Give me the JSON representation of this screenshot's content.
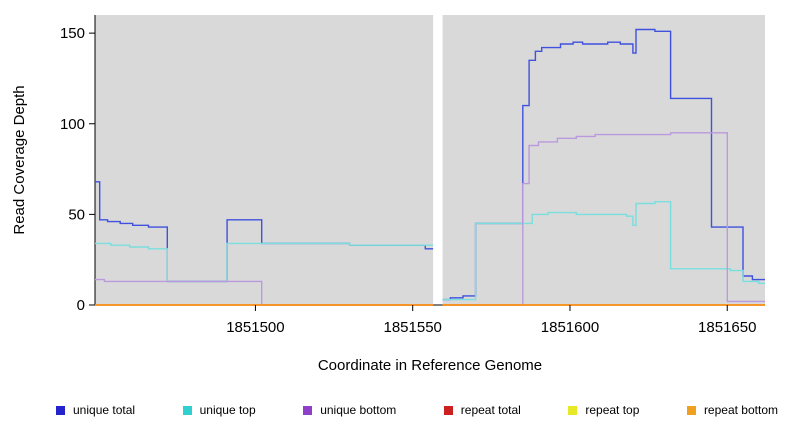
{
  "chart_data": {
    "type": "line",
    "title": "",
    "xlabel": "Coordinate in Reference Genome",
    "ylabel": "Read Coverage Depth",
    "xlim": [
      1851449,
      1851662
    ],
    "ylim": [
      0,
      160
    ],
    "xticks": [
      1851500,
      1851550,
      1851600,
      1851650
    ],
    "yticks": [
      0,
      50,
      100,
      150
    ],
    "gap_region": [
      1851556.5,
      1851559.5
    ],
    "plot_bg": "#d9d9d9",
    "axis_color": "#000000",
    "legend_position": "bottom",
    "grid": false,
    "series": [
      {
        "name": "unique total",
        "color": "#3f51dd",
        "legend_color": "#2424cc",
        "segments": [
          [
            [
              1851449,
              68
            ],
            [
              1851450.5,
              68
            ],
            [
              1851450.5,
              47
            ],
            [
              1851453,
              47
            ],
            [
              1851453,
              46
            ],
            [
              1851457,
              46
            ],
            [
              1851457,
              45
            ],
            [
              1851461,
              45
            ],
            [
              1851461,
              44
            ],
            [
              1851466,
              44
            ],
            [
              1851466,
              43
            ],
            [
              1851472,
              43
            ],
            [
              1851472,
              13
            ],
            [
              1851491,
              13
            ],
            [
              1851491,
              47
            ],
            [
              1851502,
              47
            ],
            [
              1851502,
              34
            ],
            [
              1851530,
              34
            ],
            [
              1851530,
              33
            ],
            [
              1851554,
              33
            ],
            [
              1851554,
              31
            ],
            [
              1851556.5,
              31
            ]
          ],
          [
            [
              1851559.5,
              3
            ],
            [
              1851562,
              3
            ],
            [
              1851562,
              4
            ],
            [
              1851566,
              4
            ],
            [
              1851566,
              5
            ],
            [
              1851570,
              5
            ],
            [
              1851570,
              45
            ],
            [
              1851585,
              45
            ],
            [
              1851585,
              110
            ],
            [
              1851587,
              110
            ],
            [
              1851587,
              135
            ],
            [
              1851589,
              135
            ],
            [
              1851589,
              140
            ],
            [
              1851591,
              140
            ],
            [
              1851591,
              142
            ],
            [
              1851597,
              142
            ],
            [
              1851597,
              144
            ],
            [
              1851601,
              144
            ],
            [
              1851601,
              145
            ],
            [
              1851604,
              145
            ],
            [
              1851604,
              144
            ],
            [
              1851612,
              144
            ],
            [
              1851612,
              145
            ],
            [
              1851616,
              145
            ],
            [
              1851616,
              144
            ],
            [
              1851620,
              144
            ],
            [
              1851620,
              139
            ],
            [
              1851621,
              139
            ],
            [
              1851621,
              152
            ],
            [
              1851627,
              152
            ],
            [
              1851627,
              151
            ],
            [
              1851632,
              151
            ],
            [
              1851632,
              114
            ],
            [
              1851645,
              114
            ],
            [
              1851645,
              43
            ],
            [
              1851655,
              43
            ],
            [
              1851655,
              16
            ],
            [
              1851658,
              16
            ],
            [
              1851658,
              14
            ],
            [
              1851662,
              14
            ]
          ]
        ]
      },
      {
        "name": "unique top",
        "color": "#7adede",
        "legend_color": "#30d0d0",
        "segments": [
          [
            [
              1851449,
              34
            ],
            [
              1851454,
              34
            ],
            [
              1851454,
              33
            ],
            [
              1851460,
              33
            ],
            [
              1851460,
              32
            ],
            [
              1851466,
              32
            ],
            [
              1851466,
              31
            ],
            [
              1851472,
              31
            ],
            [
              1851472,
              13
            ],
            [
              1851491,
              13
            ],
            [
              1851491,
              34
            ],
            [
              1851530,
              34
            ],
            [
              1851530,
              33
            ],
            [
              1851556.5,
              33
            ]
          ],
          [
            [
              1851559.5,
              3
            ],
            [
              1851570,
              3
            ],
            [
              1851570,
              45
            ],
            [
              1851588,
              45
            ],
            [
              1851588,
              50
            ],
            [
              1851593,
              50
            ],
            [
              1851593,
              51
            ],
            [
              1851602,
              51
            ],
            [
              1851602,
              50
            ],
            [
              1851618,
              50
            ],
            [
              1851618,
              49
            ],
            [
              1851620,
              49
            ],
            [
              1851620,
              44
            ],
            [
              1851621,
              44
            ],
            [
              1851621,
              56
            ],
            [
              1851627,
              56
            ],
            [
              1851627,
              57
            ],
            [
              1851632,
              57
            ],
            [
              1851632,
              20
            ],
            [
              1851651,
              20
            ],
            [
              1851651,
              19
            ],
            [
              1851655,
              19
            ],
            [
              1851655,
              13
            ],
            [
              1851660,
              13
            ],
            [
              1851660,
              12
            ],
            [
              1851662,
              12
            ]
          ]
        ]
      },
      {
        "name": "unique bottom",
        "color": "#bb99dd",
        "legend_color": "#9040c8",
        "segments": [
          [
            [
              1851449,
              14
            ],
            [
              1851452,
              14
            ],
            [
              1851452,
              13
            ],
            [
              1851502,
              13
            ],
            [
              1851502,
              0
            ],
            [
              1851556.5,
              0
            ]
          ],
          [
            [
              1851559.5,
              0
            ],
            [
              1851585,
              0
            ],
            [
              1851585,
              67
            ],
            [
              1851587,
              67
            ],
            [
              1851587,
              88
            ],
            [
              1851590,
              88
            ],
            [
              1851590,
              90
            ],
            [
              1851596,
              90
            ],
            [
              1851596,
              92
            ],
            [
              1851602,
              92
            ],
            [
              1851602,
              93
            ],
            [
              1851608,
              93
            ],
            [
              1851608,
              94
            ],
            [
              1851632,
              94
            ],
            [
              1851632,
              95
            ],
            [
              1851650,
              95
            ],
            [
              1851650,
              2
            ],
            [
              1851662,
              2
            ]
          ]
        ]
      },
      {
        "name": "repeat total",
        "color": "#cc2020",
        "legend_color": "#cc2020",
        "segments": [
          [
            [
              1851449,
              0
            ],
            [
              1851556.5,
              0
            ]
          ],
          [
            [
              1851559.5,
              0
            ],
            [
              1851662,
              0
            ]
          ]
        ]
      },
      {
        "name": "repeat top",
        "color": "#e8e828",
        "legend_color": "#e8e828",
        "segments": [
          [
            [
              1851449,
              0
            ],
            [
              1851556.5,
              0
            ]
          ],
          [
            [
              1851559.5,
              0
            ],
            [
              1851662,
              0
            ]
          ]
        ]
      },
      {
        "name": "repeat bottom",
        "color": "#ff8c1a",
        "legend_color": "#f0a020",
        "segments": [
          [
            [
              1851449,
              0
            ],
            [
              1851556.5,
              0
            ]
          ],
          [
            [
              1851559.5,
              0
            ],
            [
              1851662,
              0
            ]
          ]
        ]
      }
    ]
  }
}
